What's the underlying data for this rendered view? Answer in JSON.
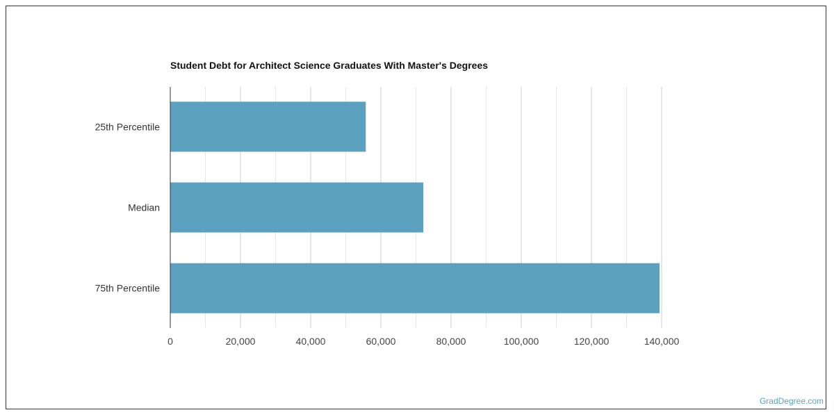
{
  "chart_data": {
    "type": "bar",
    "orientation": "horizontal",
    "title": "Student Debt for Architect Science Graduates With Master's Degrees",
    "categories": [
      "25th Percentile",
      "Median",
      "75th Percentile"
    ],
    "values": [
      55700,
      72100,
      139400
    ],
    "xlim": [
      0,
      140000
    ],
    "xticks": [
      0,
      20000,
      40000,
      60000,
      80000,
      100000,
      120000,
      140000
    ],
    "xtick_labels": [
      "0",
      "20,000",
      "40,000",
      "60,000",
      "80,000",
      "100,000",
      "120,000",
      "140,000"
    ],
    "xlabel": "",
    "ylabel": "",
    "grid": true,
    "bar_color": "#5ba1bf"
  },
  "credit": "GradDegree.com"
}
